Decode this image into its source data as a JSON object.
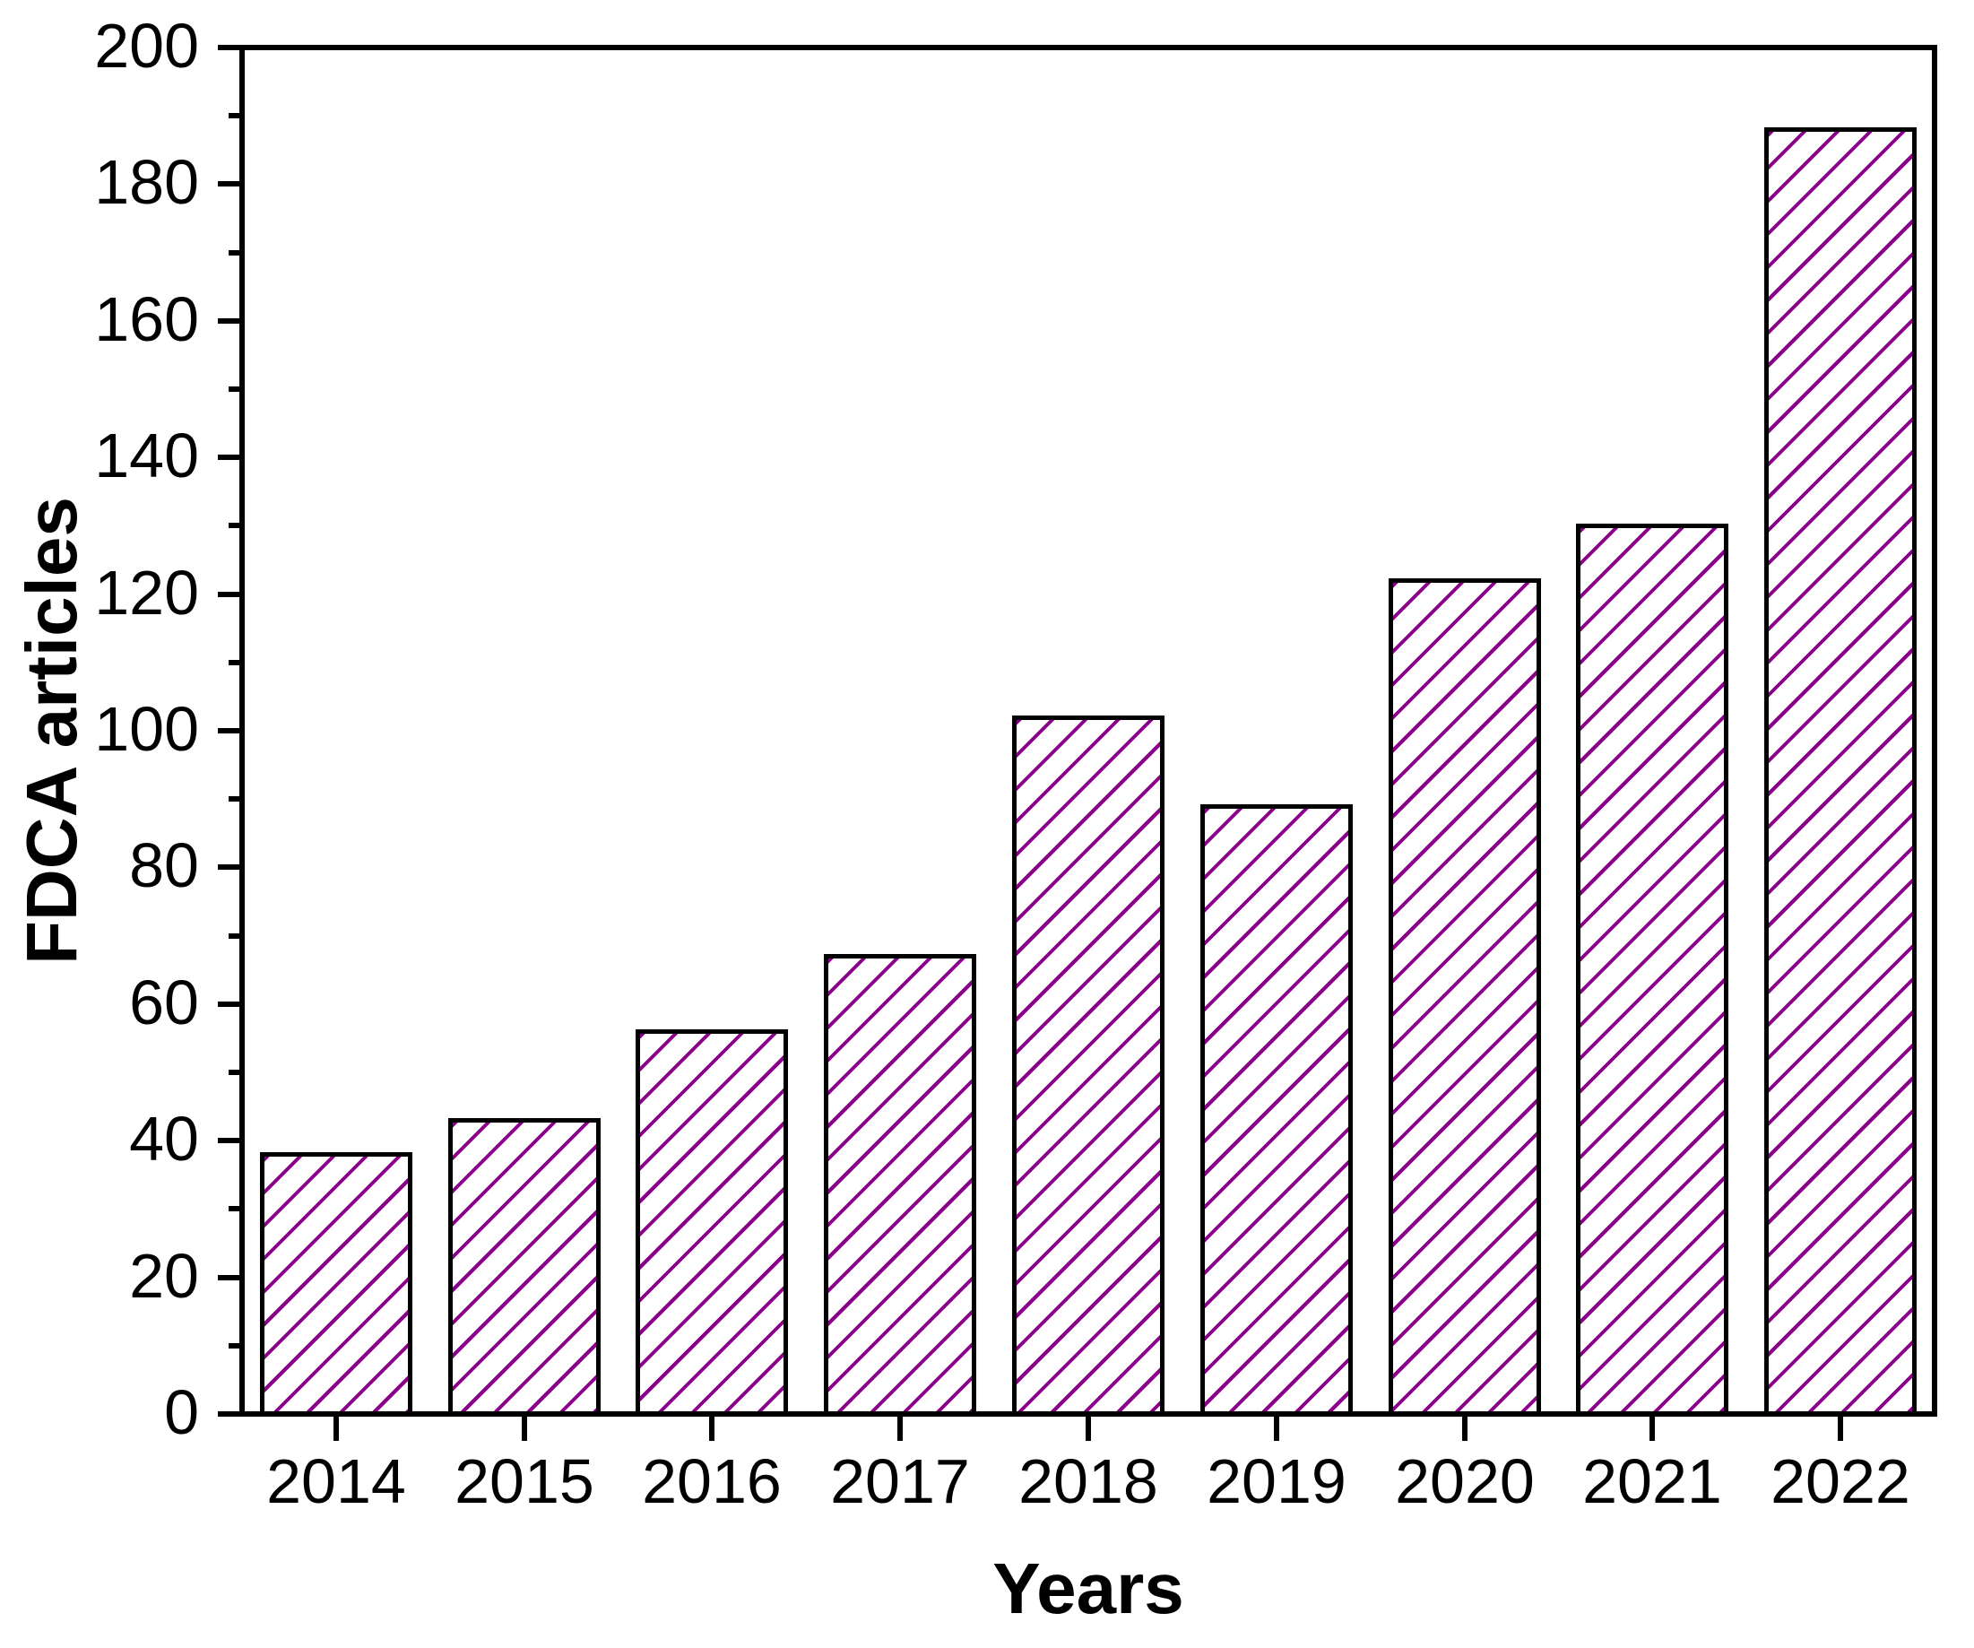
{
  "chart_data": {
    "type": "bar",
    "title": "",
    "xlabel": "Years",
    "ylabel": "FDCA articles",
    "categories": [
      "2014",
      "2015",
      "2016",
      "2017",
      "2018",
      "2019",
      "2020",
      "2021",
      "2022"
    ],
    "values": [
      38,
      43,
      56,
      67,
      102,
      89,
      122,
      130,
      188
    ],
    "ylim": [
      0,
      200
    ],
    "ytick_major_step": 20,
    "ytick_minor_step": 10,
    "ytick_labels": [
      "0",
      "20",
      "40",
      "60",
      "80",
      "100",
      "120",
      "140",
      "160",
      "180",
      "200"
    ],
    "grid": false,
    "legend": null,
    "bar_fill_color": "#ffffff",
    "bar_hatch_color": "#8B008B",
    "bar_hatch_style": "forward-diagonal",
    "bar_edge_color": "#000000",
    "axis_color": "#000000",
    "background_color": "#ffffff"
  }
}
